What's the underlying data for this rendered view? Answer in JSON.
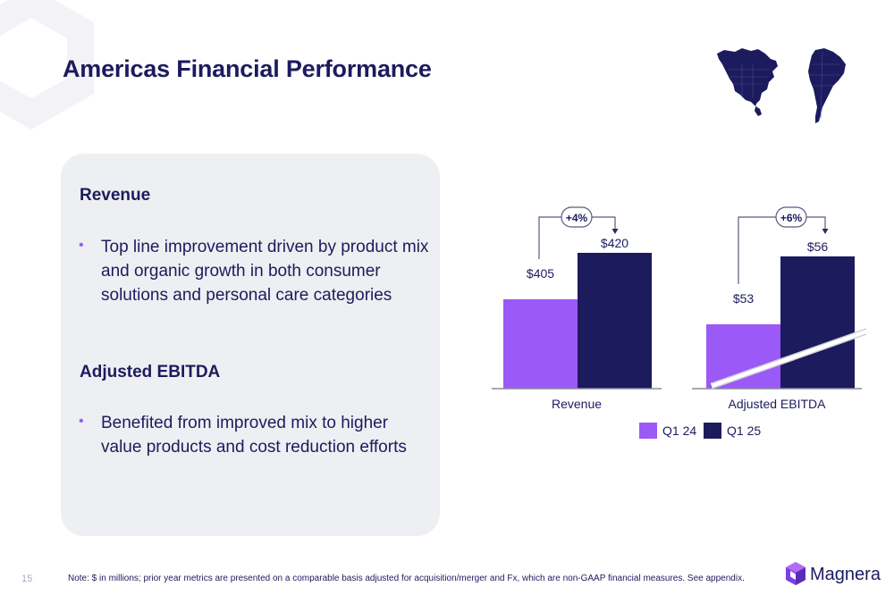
{
  "page": {
    "title": "Americas Financial Performance",
    "page_number": "15",
    "footnote": "Note: $ in millions; prior year metrics are presented on a comparable basis adjusted for acquisition/merger and Fx, which are non-GAAP financial measures.  See appendix.",
    "brand": "Magnera"
  },
  "panel": {
    "revenue_heading": "Revenue",
    "revenue_bullet": "Top line improvement driven by product mix and organic growth in both consumer solutions and personal care categories",
    "ebitda_heading": "Adjusted EBITDA",
    "ebitda_bullet": "Benefited from improved mix to higher value products and cost reduction efforts"
  },
  "colors": {
    "navy": "#1c1b5e",
    "purple": "#9b59f7",
    "panel": "#eeeff2"
  },
  "icons": [
    "north-america-map-icon",
    "south-america-map-icon",
    "magnera-logo-icon"
  ],
  "chart_data": [
    {
      "type": "bar",
      "categories": [
        "Revenue"
      ],
      "series": [
        {
          "name": "Q1 24",
          "values": [
            405
          ]
        },
        {
          "name": "Q1 25",
          "values": [
            420
          ]
        }
      ],
      "data_labels": [
        "$405",
        "$420"
      ],
      "change_label": "+4%",
      "axis_break": false
    },
    {
      "type": "bar",
      "categories": [
        "Adjusted EBITDA"
      ],
      "series": [
        {
          "name": "Q1 24",
          "values": [
            53
          ]
        },
        {
          "name": "Q1 25",
          "values": [
            56
          ]
        }
      ],
      "data_labels": [
        "$53",
        "$56"
      ],
      "change_label": "+6%",
      "axis_break": true
    }
  ]
}
